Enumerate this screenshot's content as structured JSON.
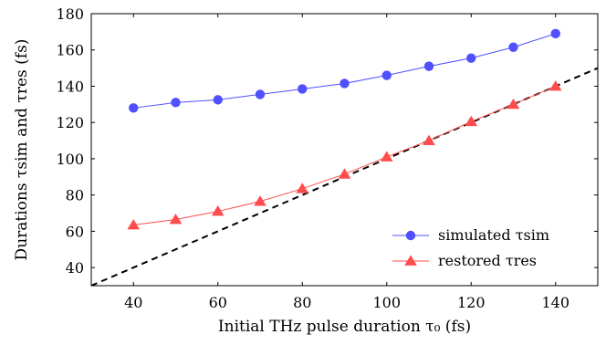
{
  "chart_data": {
    "type": "line",
    "xlabel": "Initial THz pulse duration τ₀ (fs)",
    "ylabel": "Durations τsim and τres (fs)",
    "xlim": [
      30,
      150
    ],
    "ylim": [
      30,
      180
    ],
    "x_ticks": [
      40,
      60,
      80,
      100,
      120,
      140
    ],
    "y_ticks": [
      40,
      60,
      80,
      100,
      120,
      140,
      160,
      180
    ],
    "grid": false,
    "legend_position": "bottom-right",
    "x": [
      40,
      50,
      60,
      70,
      80,
      90,
      100,
      110,
      120,
      130,
      140
    ],
    "series": [
      {
        "name": "simulated τsim",
        "marker": "circle",
        "color": "#5050ff",
        "values": [
          128,
          131,
          132.5,
          135.5,
          138.5,
          141.5,
          146,
          151,
          155.5,
          161.5,
          169
        ]
      },
      {
        "name": "restored τres",
        "marker": "triangle",
        "color": "#ff4d4d",
        "values": [
          63.5,
          66.5,
          71,
          76.5,
          83.5,
          91.5,
          101,
          110,
          120.5,
          130,
          140
        ]
      }
    ],
    "reference_line": {
      "style": "dashed",
      "color": "#000000",
      "points": [
        [
          30,
          30
        ],
        [
          150,
          150
        ]
      ]
    }
  }
}
